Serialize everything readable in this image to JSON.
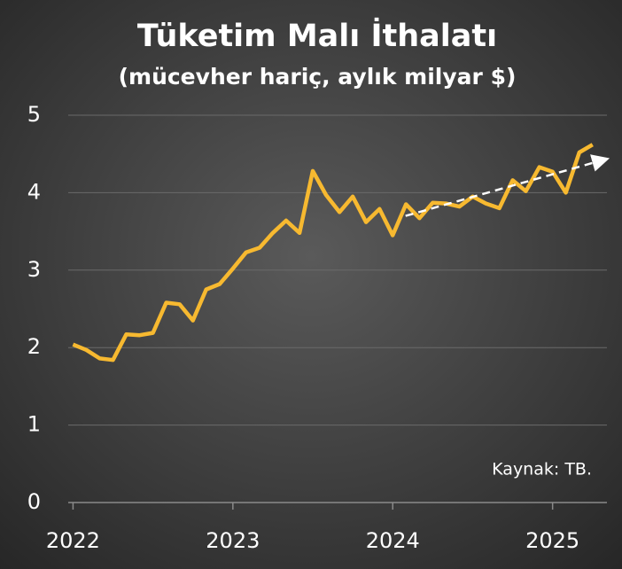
{
  "chart_data": {
    "type": "line",
    "title": "Tüketim Malı İthalatı",
    "subtitle": "(mücevher hariç, aylık milyar $)",
    "annotation": "Kaynak: TB.",
    "x": [
      2022,
      2022.083,
      2022.167,
      2022.25,
      2022.333,
      2022.417,
      2022.5,
      2022.583,
      2022.667,
      2022.75,
      2022.833,
      2022.917,
      2023,
      2023.083,
      2023.167,
      2023.25,
      2023.333,
      2023.417,
      2023.5,
      2023.583,
      2023.667,
      2023.75,
      2023.833,
      2023.917,
      2024,
      2024.083,
      2024.167,
      2024.25,
      2024.333,
      2024.417,
      2024.5,
      2024.583,
      2024.667,
      2024.75,
      2024.833,
      2024.917,
      2025,
      2025.083,
      2025.167,
      2025.25
    ],
    "series": [
      {
        "color": "#f7b930",
        "values": [
          2.04,
          1.97,
          1.86,
          1.84,
          2.17,
          2.16,
          2.19,
          2.58,
          2.56,
          2.35,
          2.75,
          2.82,
          3.02,
          3.23,
          3.29,
          3.48,
          3.64,
          3.48,
          4.28,
          3.97,
          3.75,
          3.95,
          3.62,
          3.79,
          3.45,
          3.85,
          3.67,
          3.87,
          3.86,
          3.82,
          3.95,
          3.86,
          3.8,
          4.16,
          4.02,
          4.33,
          4.27,
          4.0,
          4.52,
          4.62
        ]
      }
    ],
    "trend_line": {
      "color": "#ffffff",
      "x": [
        2024.08,
        2025.33
      ],
      "values": [
        3.7,
        4.43
      ]
    },
    "xlim": [
      2021.97,
      2025.34
    ],
    "xticks": [
      2022,
      2023,
      2024,
      2025
    ],
    "ylim": [
      0,
      5
    ],
    "yticks": [
      0,
      1,
      2,
      3,
      4,
      5
    ],
    "grid": true
  }
}
